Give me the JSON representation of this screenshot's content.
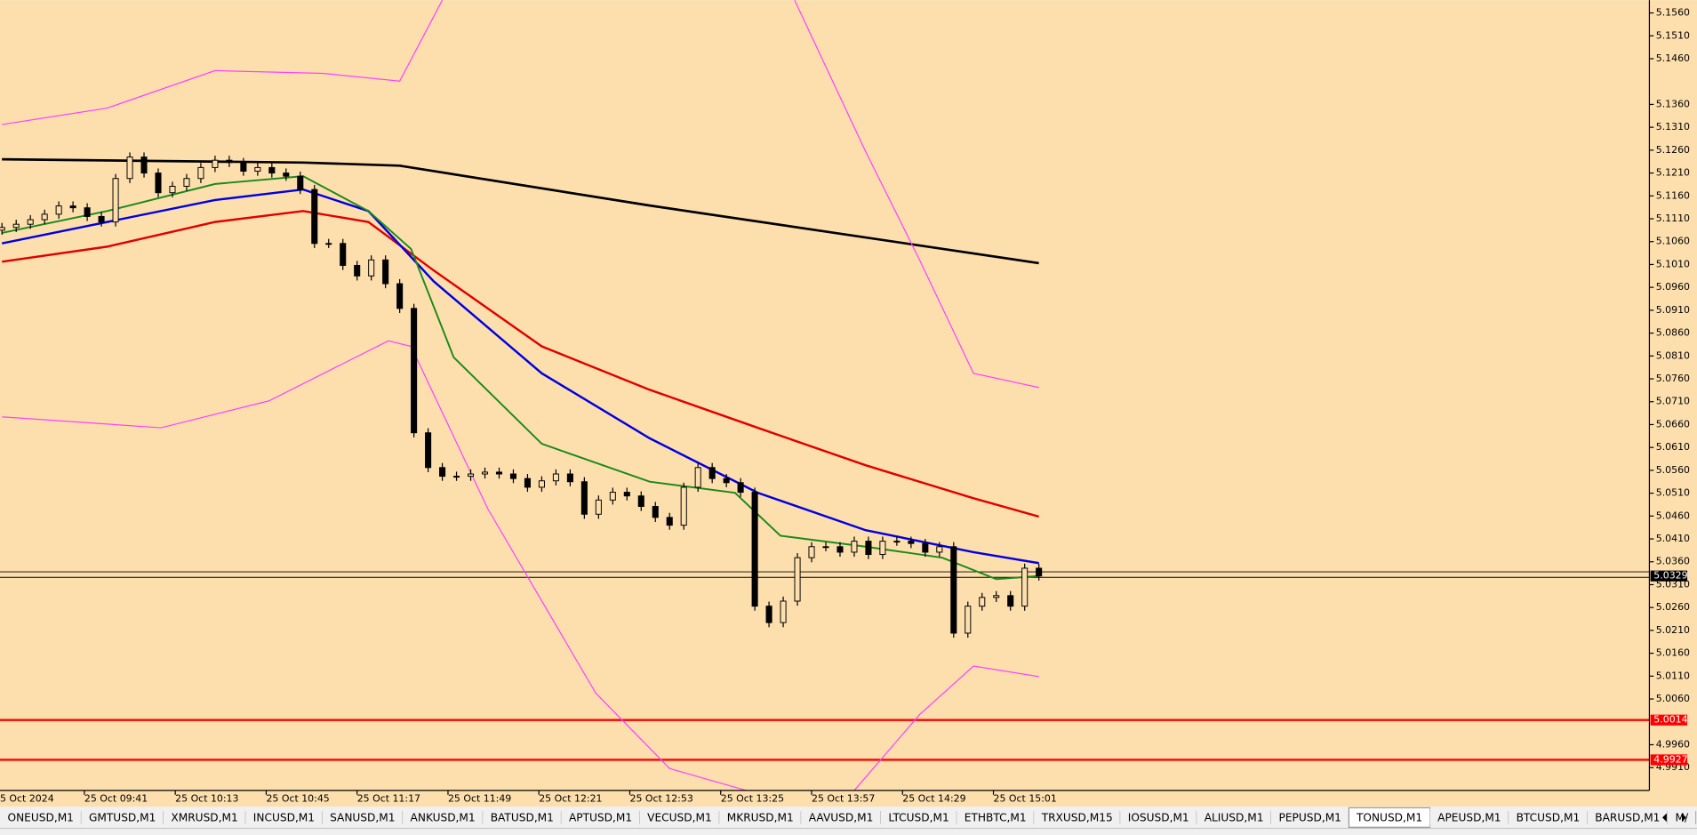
{
  "chart_data": {
    "type": "candlestick",
    "background": "#fddfae",
    "x": [
      552,
      557,
      562,
      567,
      572,
      577,
      582,
      587,
      592,
      597,
      602,
      607,
      612,
      617,
      622,
      627,
      632,
      637,
      642,
      647,
      652,
      657,
      662,
      667,
      672,
      677,
      682,
      687,
      692,
      697,
      702,
      707,
      712,
      717,
      722,
      727,
      732,
      737,
      742,
      747,
      752,
      757,
      762,
      767,
      772,
      777,
      782,
      787,
      792,
      797,
      802,
      807,
      812,
      817,
      822,
      827,
      832,
      837,
      842,
      847,
      852,
      857,
      862,
      867,
      872,
      877,
      882,
      887,
      892,
      897,
      902,
      907,
      912,
      917
    ],
    "open": [
      5.1085,
      5.1091,
      5.1098,
      5.1108,
      5.112,
      5.1138,
      5.1134,
      5.1115,
      5.1103,
      5.1198,
      5.1245,
      5.121,
      5.1167,
      5.1181,
      5.1198,
      5.1222,
      5.1238,
      5.1233,
      5.1214,
      5.1222,
      5.121,
      5.1203,
      5.1174,
      5.1056,
      5.1056,
      5.1008,
      5.0985,
      5.102,
      5.0968,
      5.0914,
      5.0642,
      5.0566,
      5.0547,
      5.0547,
      5.0552,
      5.0556,
      5.0552,
      5.0542,
      5.0523,
      5.0537,
      5.0552,
      5.0535,
      5.0464,
      5.0495,
      5.0512,
      5.0504,
      5.0481,
      5.0457,
      5.044,
      5.0523,
      5.0566,
      5.0542,
      5.0533,
      5.0512,
      5.0263,
      5.0227,
      5.0274,
      5.0369,
      5.0393,
      5.0393,
      5.0381,
      5.0405,
      5.0376,
      5.0405,
      5.0405,
      5.04,
      5.0381,
      5.0393,
      5.0204,
      5.0263,
      5.0282,
      5.0286,
      5.0263,
      5.0346
    ],
    "high": [
      5.1101,
      5.1108,
      5.1118,
      5.113,
      5.1148,
      5.1148,
      5.1144,
      5.1125,
      5.1208,
      5.1255,
      5.1255,
      5.122,
      5.1191,
      5.1208,
      5.1232,
      5.1248,
      5.1248,
      5.1243,
      5.1232,
      5.1232,
      5.122,
      5.1213,
      5.1184,
      5.1066,
      5.1066,
      5.1018,
      5.103,
      5.103,
      5.0978,
      5.0924,
      5.0652,
      5.0576,
      5.0557,
      5.0562,
      5.0566,
      5.0566,
      5.0562,
      5.0552,
      5.0547,
      5.0562,
      5.0562,
      5.0545,
      5.0505,
      5.0522,
      5.0522,
      5.0514,
      5.0491,
      5.0467,
      5.0533,
      5.0576,
      5.0576,
      5.0552,
      5.0543,
      5.0522,
      5.0273,
      5.0284,
      5.0379,
      5.0403,
      5.0403,
      5.0403,
      5.0415,
      5.0415,
      5.0415,
      5.0415,
      5.0415,
      5.041,
      5.0403,
      5.0403,
      5.0273,
      5.0292,
      5.0296,
      5.0296,
      5.0356,
      5.0356
    ],
    "low": [
      5.1075,
      5.1081,
      5.1088,
      5.1098,
      5.111,
      5.1124,
      5.1105,
      5.1093,
      5.1093,
      5.1188,
      5.12,
      5.1157,
      5.1157,
      5.1171,
      5.1188,
      5.1212,
      5.1223,
      5.1204,
      5.1204,
      5.12,
      5.1193,
      5.1164,
      5.1046,
      5.1046,
      5.0998,
      5.0975,
      5.0975,
      5.0958,
      5.0904,
      5.0632,
      5.0556,
      5.0537,
      5.0537,
      5.0537,
      5.0542,
      5.0542,
      5.0532,
      5.0513,
      5.0513,
      5.0527,
      5.0525,
      5.0454,
      5.0454,
      5.0485,
      5.0494,
      5.0471,
      5.0447,
      5.043,
      5.043,
      5.0513,
      5.0532,
      5.0523,
      5.0502,
      5.0253,
      5.0217,
      5.0217,
      5.0264,
      5.0359,
      5.0383,
      5.0371,
      5.0371,
      5.0366,
      5.0366,
      5.0395,
      5.039,
      5.0371,
      5.0371,
      5.0194,
      5.0194,
      5.0253,
      5.0272,
      5.0253,
      5.0253,
      5.0319
    ],
    "close": [
      5.1091,
      5.1098,
      5.1108,
      5.112,
      5.1138,
      5.1134,
      5.1115,
      5.1103,
      5.1198,
      5.1245,
      5.121,
      5.1167,
      5.1181,
      5.1198,
      5.1222,
      5.1238,
      5.1233,
      5.1214,
      5.1222,
      5.121,
      5.1203,
      5.1174,
      5.1056,
      5.1056,
      5.1008,
      5.0985,
      5.102,
      5.0968,
      5.0914,
      5.0642,
      5.0566,
      5.0547,
      5.0547,
      5.0552,
      5.0556,
      5.0552,
      5.0542,
      5.0523,
      5.0537,
      5.0552,
      5.0535,
      5.0464,
      5.0495,
      5.0512,
      5.0504,
      5.0481,
      5.0457,
      5.044,
      5.0523,
      5.0566,
      5.0542,
      5.0533,
      5.0512,
      5.0263,
      5.0227,
      5.0274,
      5.0369,
      5.0393,
      5.0393,
      5.0381,
      5.0405,
      5.0376,
      5.0405,
      5.0405,
      5.04,
      5.0381,
      5.0393,
      5.0204,
      5.0263,
      5.0282,
      5.0286,
      5.0263,
      5.0346,
      5.0329
    ],
    "xlim": [
      551.3,
      1131.9
    ],
    "ylim": [
      4.986,
      5.1588
    ],
    "first_x_label": "5 Oct 2024",
    "xticks": [
      {
        "value": 581,
        "label": "25 Oct 09:41"
      },
      {
        "value": 613,
        "label": "25 Oct 10:13"
      },
      {
        "value": 645,
        "label": "25 Oct 10:45"
      },
      {
        "value": 677,
        "label": "25 Oct 11:17"
      },
      {
        "value": 709,
        "label": "25 Oct 11:49"
      },
      {
        "value": 741,
        "label": "25 Oct 12:21"
      },
      {
        "value": 773,
        "label": "25 Oct 12:53"
      },
      {
        "value": 805,
        "label": "25 Oct 13:25"
      },
      {
        "value": 837,
        "label": "25 Oct 13:57"
      },
      {
        "value": 869,
        "label": "25 Oct 14:29"
      },
      {
        "value": 901,
        "label": "25 Oct 15:01"
      }
    ],
    "yticks": [
      {
        "value": 5.156,
        "label": "5.1560"
      },
      {
        "value": 5.151,
        "label": "5.1510"
      },
      {
        "value": 5.146,
        "label": "5.1460"
      },
      {
        "value": 5.136,
        "label": "5.1360"
      },
      {
        "value": 5.131,
        "label": "5.1310"
      },
      {
        "value": 5.126,
        "label": "5.1260"
      },
      {
        "value": 5.121,
        "label": "5.1210"
      },
      {
        "value": 5.116,
        "label": "5.1160"
      },
      {
        "value": 5.111,
        "label": "5.1110"
      },
      {
        "value": 5.106,
        "label": "5.1060"
      },
      {
        "value": 5.101,
        "label": "5.1010"
      },
      {
        "value": 5.096,
        "label": "5.0960"
      },
      {
        "value": 5.091,
        "label": "5.0910"
      },
      {
        "value": 5.086,
        "label": "5.0860"
      },
      {
        "value": 5.081,
        "label": "5.0810"
      },
      {
        "value": 5.076,
        "label": "5.0760"
      },
      {
        "value": 5.071,
        "label": "5.0710"
      },
      {
        "value": 5.066,
        "label": "5.0660"
      },
      {
        "value": 5.061,
        "label": "5.0610"
      },
      {
        "value": 5.056,
        "label": "5.0560"
      },
      {
        "value": 5.051,
        "label": "5.0510"
      },
      {
        "value": 5.046,
        "label": "5.0460"
      },
      {
        "value": 5.041,
        "label": "5.0410"
      },
      {
        "value": 5.036,
        "label": "5.0360"
      },
      {
        "value": 5.031,
        "label": "5.0310"
      },
      {
        "value": 5.026,
        "label": "5.0260"
      },
      {
        "value": 5.021,
        "label": "5.0210"
      },
      {
        "value": 5.016,
        "label": "5.0160"
      },
      {
        "value": 5.011,
        "label": "5.0110"
      },
      {
        "value": 5.006,
        "label": "5.0060"
      },
      {
        "value": 4.996,
        "label": "4.9960"
      },
      {
        "value": 4.991,
        "label": "4.9910"
      }
    ],
    "series": [
      {
        "color": "#000000",
        "width": 2.2,
        "x": [
          552,
          658,
          692,
          780,
          917
        ],
        "values": [
          5.124,
          5.1233,
          5.1226,
          5.1139,
          5.1013
        ]
      },
      {
        "color": "#e00000",
        "width": 2,
        "x": [
          552,
          589,
          627,
          658,
          681,
          704,
          742,
          780,
          818,
          856,
          894,
          917
        ],
        "values": [
          5.1016,
          5.1049,
          5.1103,
          5.1127,
          5.1103,
          5.0997,
          5.0831,
          5.0736,
          5.0653,
          5.0571,
          5.0499,
          5.0459
        ]
      },
      {
        "color": "#0000e0",
        "width": 2,
        "x": [
          552,
          589,
          627,
          658,
          681,
          704,
          742,
          780,
          818,
          856,
          894,
          917
        ],
        "values": [
          5.1056,
          5.1103,
          5.1151,
          5.1174,
          5.1127,
          5.0973,
          5.0772,
          5.063,
          5.0511,
          5.0429,
          5.0381,
          5.0357
        ]
      },
      {
        "color": "#1a8a1a",
        "width": 1.6,
        "x": [
          552,
          589,
          627,
          658,
          681,
          696,
          711,
          742,
          780,
          810,
          826,
          856,
          883,
          902,
          917
        ],
        "values": [
          5.1079,
          5.1127,
          5.1186,
          5.1203,
          5.1127,
          5.1044,
          5.0807,
          5.0618,
          5.0535,
          5.0511,
          5.0417,
          5.0393,
          5.0369,
          5.0322,
          5.0329
        ]
      },
      {
        "color": "#ff40ff",
        "width": 1,
        "x": [
          552,
          589,
          627,
          665,
          692,
          707,
          null,
          831,
          856,
          875,
          894,
          917
        ],
        "values": [
          5.1316,
          5.1352,
          5.1434,
          5.1428,
          5.1411,
          5.1588,
          null,
          5.1588,
          5.1257,
          5.102,
          5.0772,
          5.0741
        ]
      },
      {
        "color": "#ff40ff",
        "width": 1,
        "x": [
          552,
          608,
          646,
          688,
          696,
          723,
          761,
          787,
          814,
          null,
          852,
          875,
          894,
          917
        ],
        "values": [
          5.0677,
          5.0653,
          5.0712,
          5.0843,
          5.0831,
          5.0476,
          5.0073,
          4.9908,
          4.986,
          null,
          4.986,
          5.0026,
          5.0132,
          5.0109
        ]
      }
    ],
    "price_lines": [
      {
        "value": 5.0338,
        "color": "#000000"
      },
      {
        "value": 5.0326,
        "color": "#000000"
      }
    ],
    "levels": [
      {
        "value": 5.0014,
        "color": "#ff0000"
      },
      {
        "value": 4.9927,
        "color": "#ff0000"
      }
    ],
    "last_price": 5.0329
  },
  "tabs": {
    "items": [
      "ONEUSD,M1",
      "GMTUSD,M1",
      "XMRUSD,M1",
      "INCUSD,M1",
      "SANUSD,M1",
      "ANKUSD,M1",
      "BATUSD,M1",
      "APTUSD,M1",
      "VECUSD,M1",
      "MKRUSD,M1",
      "AAVUSD,M1",
      "LTCUSD,M1",
      "ETHBTC,M1",
      "TRXUSD,M15",
      "IOSUSD,M1",
      "ALIUSD,M1",
      "PEPUSD,M1",
      "TONUSD,M1",
      "APEUSD,M1",
      "BTCUSD,M1",
      "BARUSD,M1",
      "M/"
    ],
    "active": 17
  }
}
